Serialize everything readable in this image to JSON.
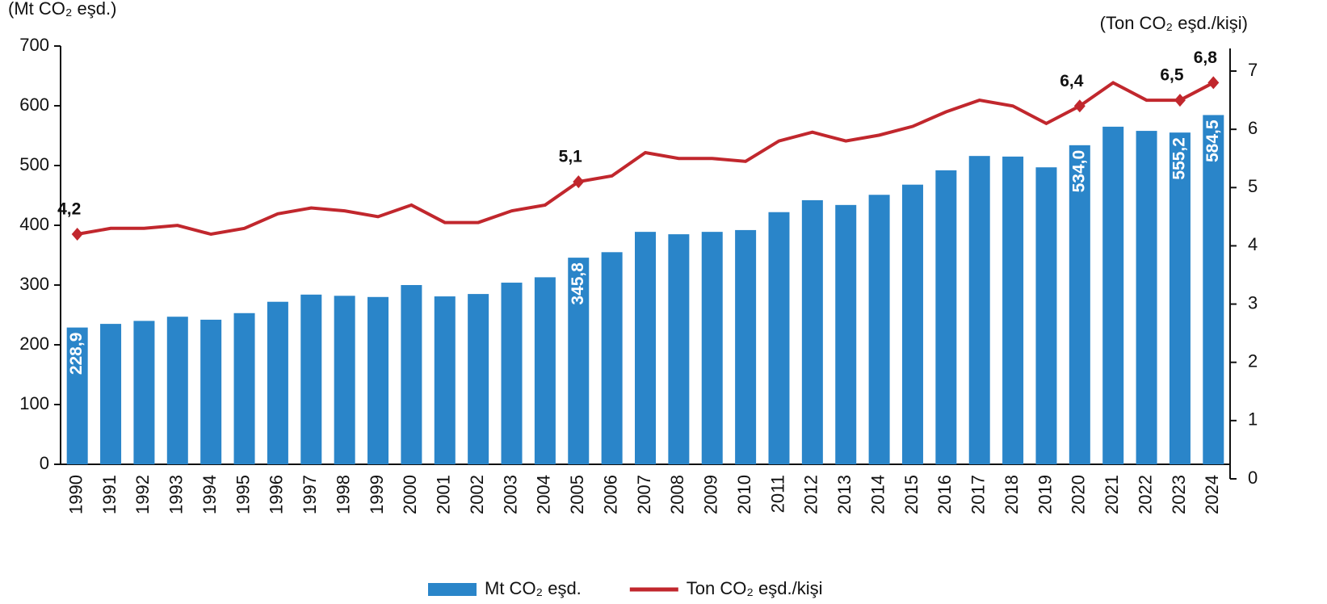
{
  "chart_data": {
    "type": "bar_line",
    "y_label": "(Mt CO₂ eşd.)",
    "y2_label": "(Ton CO₂ eşd./kişi)",
    "categories": [
      "1990",
      "1991",
      "1992",
      "1993",
      "1994",
      "1995",
      "1996",
      "1997",
      "1998",
      "1999",
      "2000",
      "2001",
      "2002",
      "2003",
      "2004",
      "2005",
      "2006",
      "2007",
      "2008",
      "2009",
      "2010",
      "2011",
      "2012",
      "2013",
      "2014",
      "2015",
      "2016",
      "2017",
      "2018",
      "2019",
      "2020",
      "2021",
      "2022",
      "2023",
      "2024"
    ],
    "series": [
      {
        "name": "Mt CO₂ eşd.",
        "type": "bar",
        "color": "#2a85c9",
        "values": [
          228.9,
          235,
          240,
          247,
          242,
          253,
          272,
          284,
          282,
          280,
          300,
          281,
          285,
          304,
          313,
          345.8,
          355,
          389,
          385,
          389,
          392,
          422,
          442,
          434,
          451,
          468,
          492,
          516,
          515,
          497,
          534.0,
          565,
          558,
          555.2,
          584.5
        ],
        "value_labels": [
          "228,9",
          null,
          null,
          null,
          null,
          null,
          null,
          null,
          null,
          null,
          null,
          null,
          null,
          null,
          null,
          "345,8",
          null,
          null,
          null,
          null,
          null,
          null,
          null,
          null,
          null,
          null,
          null,
          null,
          null,
          null,
          "534,0",
          null,
          null,
          "555,2",
          "584,5"
        ]
      },
      {
        "name": "Ton CO₂ eşd./kişi",
        "type": "line",
        "axis": "y2",
        "color": "#c1272d",
        "values": [
          4.2,
          4.3,
          4.3,
          4.35,
          4.2,
          4.3,
          4.55,
          4.65,
          4.6,
          4.5,
          4.7,
          4.4,
          4.4,
          4.6,
          4.7,
          5.1,
          5.2,
          5.6,
          5.5,
          5.5,
          5.45,
          5.8,
          5.95,
          5.8,
          5.9,
          6.05,
          6.3,
          6.5,
          6.4,
          6.1,
          6.4,
          6.8,
          6.5,
          6.5,
          6.8
        ],
        "value_labels": [
          "4,2",
          null,
          null,
          null,
          null,
          null,
          null,
          null,
          null,
          null,
          null,
          null,
          null,
          null,
          null,
          "5,1",
          null,
          null,
          null,
          null,
          null,
          null,
          null,
          null,
          null,
          null,
          null,
          null,
          null,
          null,
          "6,4",
          null,
          null,
          "6,5",
          "6,8"
        ]
      }
    ],
    "ylim": [
      0,
      700
    ],
    "yticks": [
      0,
      100,
      200,
      300,
      400,
      500,
      600,
      700
    ],
    "y2lim": [
      0,
      7
    ],
    "y2ticks": [
      0,
      1,
      2,
      3,
      4,
      5,
      6,
      7
    ]
  }
}
